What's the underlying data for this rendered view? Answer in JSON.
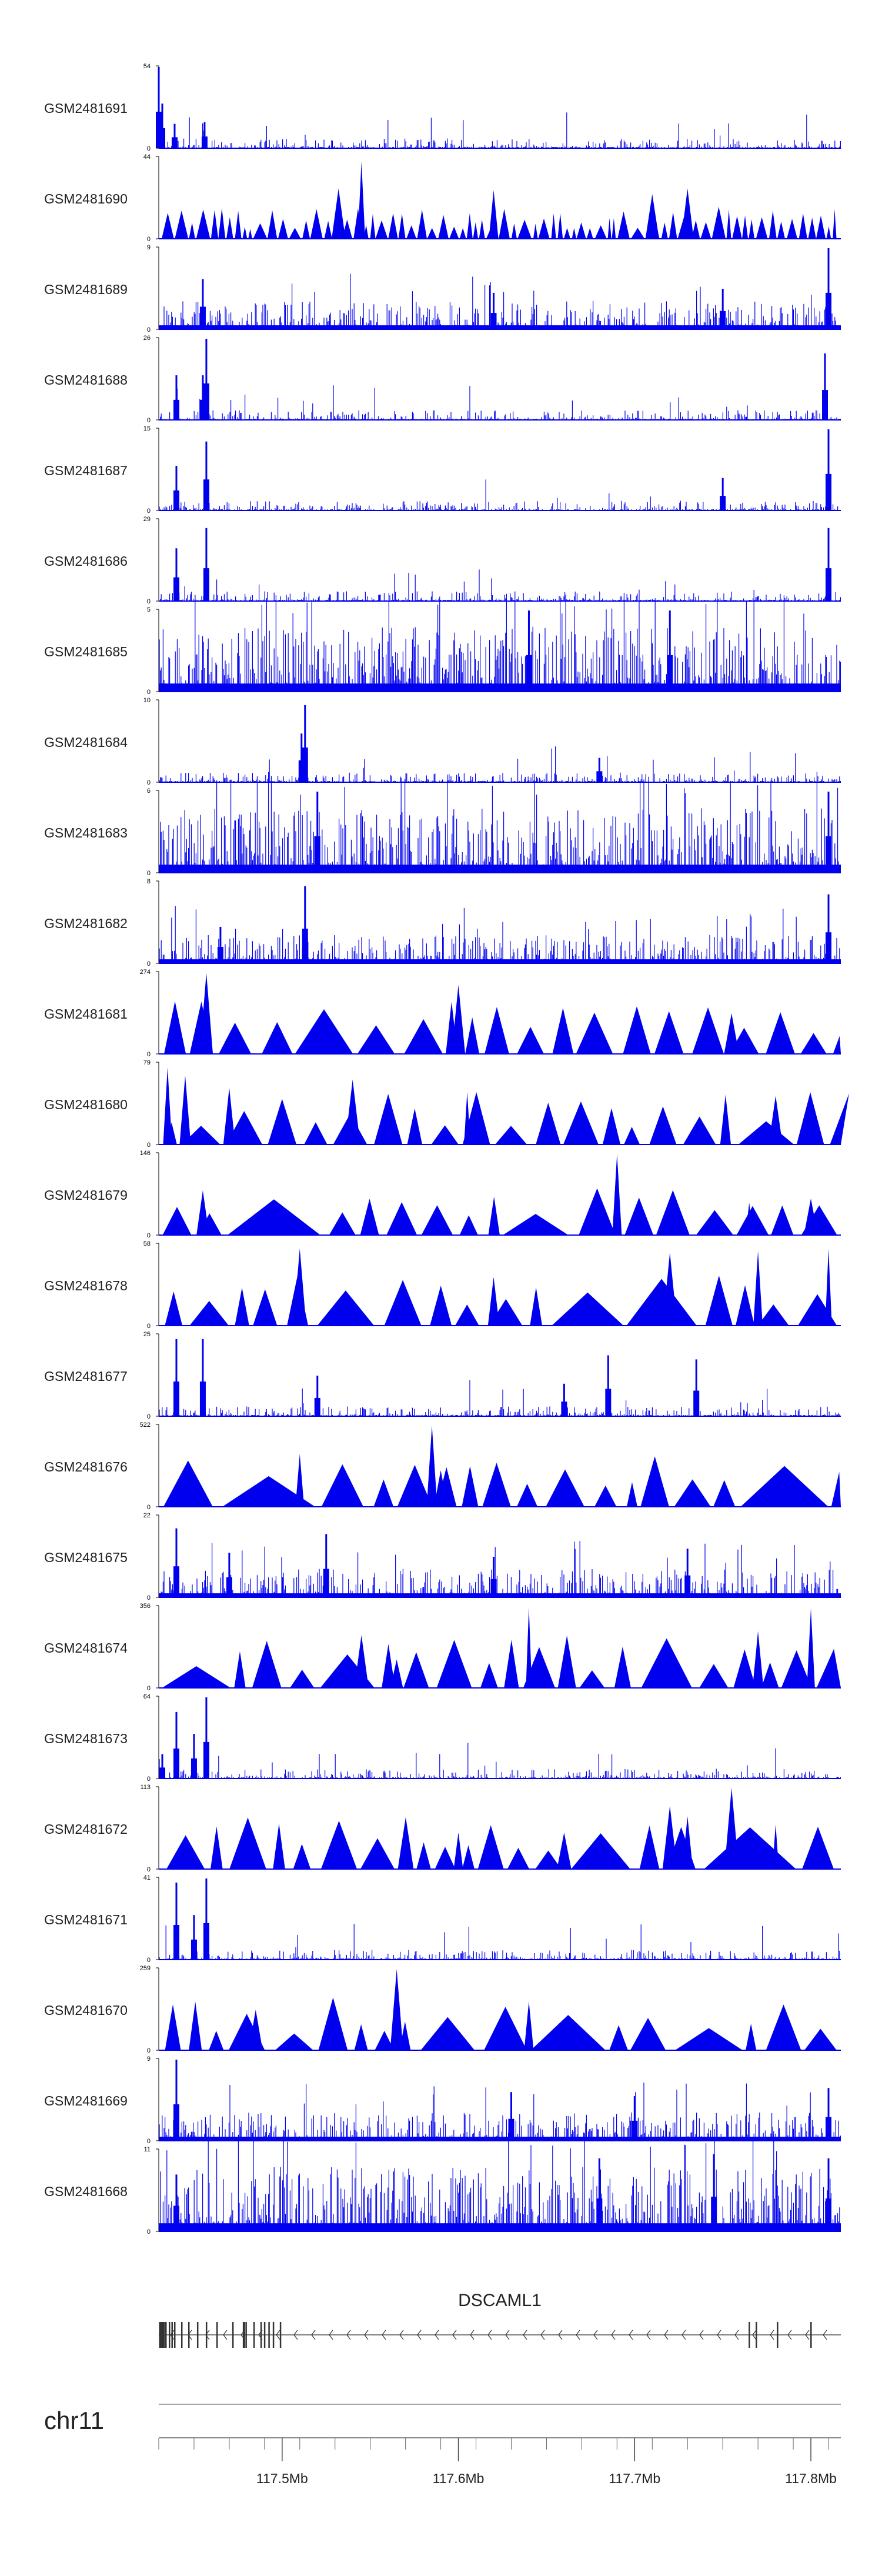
{
  "chart_data": {
    "type": "genome-browser-coverage-tracks",
    "colors": {
      "track": "#0000EE",
      "axis": "#000000",
      "gene": "#333333",
      "label": "#222222"
    },
    "tracks": [
      {
        "name": "GSM2481691",
        "ymin": "0",
        "ymax": "54",
        "style": "sparse-peaks",
        "peaks": [
          [
            117.43,
            1.0
          ],
          [
            117.432,
            0.55
          ],
          [
            117.439,
            0.3
          ],
          [
            117.456,
            0.32
          ]
        ]
      },
      {
        "name": "GSM2481690",
        "ymin": "0",
        "ymax": "44",
        "style": "dense-triangles",
        "peaks": [
          [
            117.545,
            0.95
          ],
          [
            117.532,
            0.62
          ],
          [
            117.62,
            0.6
          ],
          [
            117.71,
            0.55
          ],
          [
            117.73,
            0.62
          ]
        ]
      },
      {
        "name": "GSM2481689",
        "ymin": "0",
        "ymax": "9",
        "style": "dense",
        "peaks": [
          [
            117.455,
            0.62
          ],
          [
            117.81,
            1.0
          ],
          [
            117.75,
            0.5
          ],
          [
            117.62,
            0.45
          ]
        ]
      },
      {
        "name": "GSM2481688",
        "ymin": "0",
        "ymax": "26",
        "style": "sparse-peaks",
        "peaks": [
          [
            117.44,
            0.55
          ],
          [
            117.457,
            1.0
          ],
          [
            117.455,
            0.55
          ],
          [
            117.808,
            0.82
          ]
        ]
      },
      {
        "name": "GSM2481687",
        "ymin": "0",
        "ymax": "15",
        "style": "sparse-peaks",
        "peaks": [
          [
            117.44,
            0.55
          ],
          [
            117.457,
            0.85
          ],
          [
            117.81,
            1.0
          ],
          [
            117.75,
            0.4
          ]
        ]
      },
      {
        "name": "GSM2481686",
        "ymin": "0",
        "ymax": "29",
        "style": "sparse-peaks",
        "peaks": [
          [
            117.44,
            0.65
          ],
          [
            117.457,
            0.9
          ],
          [
            117.81,
            0.9
          ]
        ]
      },
      {
        "name": "GSM2481685",
        "ymin": "0",
        "ymax": "5",
        "style": "dense-bars",
        "peaks": [
          [
            117.64,
            1.0
          ],
          [
            117.72,
            1.0
          ]
        ]
      },
      {
        "name": "GSM2481684",
        "ymin": "0",
        "ymax": "10",
        "style": "sparse-peaks",
        "peaks": [
          [
            117.513,
            0.95
          ],
          [
            117.511,
            0.6
          ],
          [
            117.68,
            0.3
          ]
        ]
      },
      {
        "name": "GSM2481683",
        "ymin": "0",
        "ymax": "6",
        "style": "dense-bars",
        "peaks": [
          [
            117.52,
            1.0
          ],
          [
            117.81,
            1.0
          ]
        ]
      },
      {
        "name": "GSM2481682",
        "ymin": "0",
        "ymax": "8",
        "style": "dense",
        "peaks": [
          [
            117.513,
            0.95
          ],
          [
            117.81,
            0.85
          ],
          [
            117.465,
            0.45
          ]
        ]
      },
      {
        "name": "GSM2481681",
        "ymin": "0",
        "ymax": "274",
        "style": "triangles",
        "peaks": [
          [
            117.457,
            1.0
          ],
          [
            117.6,
            0.85
          ],
          [
            117.52,
            0.25
          ],
          [
            117.755,
            0.5
          ],
          [
            117.475,
            0.2
          ]
        ]
      },
      {
        "name": "GSM2481680",
        "ymin": "0",
        "ymax": "79",
        "style": "triangles",
        "peaks": [
          [
            117.435,
            0.95
          ],
          [
            117.445,
            0.85
          ],
          [
            117.47,
            0.7
          ],
          [
            117.54,
            0.8
          ],
          [
            117.605,
            0.65
          ],
          [
            117.78,
            0.6
          ],
          [
            117.56,
            0.45
          ]
        ]
      },
      {
        "name": "GSM2481679",
        "ymin": "0",
        "ymax": "146",
        "style": "triangles",
        "peaks": [
          [
            117.69,
            1.0
          ],
          [
            117.455,
            0.55
          ],
          [
            117.765,
            0.4
          ],
          [
            117.8,
            0.45
          ]
        ]
      },
      {
        "name": "GSM2481678",
        "ymin": "0",
        "ymax": "58",
        "style": "triangles",
        "peaks": [
          [
            117.51,
            0.95
          ],
          [
            117.72,
            0.9
          ],
          [
            117.77,
            0.92
          ],
          [
            117.81,
            0.95
          ],
          [
            117.62,
            0.6
          ]
        ]
      },
      {
        "name": "GSM2481677",
        "ymin": "0",
        "ymax": "25",
        "style": "sparse-peaks",
        "peaks": [
          [
            117.44,
            0.95
          ],
          [
            117.455,
            0.95
          ],
          [
            117.52,
            0.5
          ],
          [
            117.685,
            0.75
          ],
          [
            117.735,
            0.7
          ],
          [
            117.66,
            0.4
          ]
        ]
      },
      {
        "name": "GSM2481676",
        "ymin": "0",
        "ymax": "522",
        "style": "triangles",
        "peaks": [
          [
            117.585,
            1.0
          ],
          [
            117.51,
            0.65
          ],
          [
            117.59,
            0.45
          ]
        ]
      },
      {
        "name": "GSM2481675",
        "ymin": "0",
        "ymax": "22",
        "style": "dense",
        "peaks": [
          [
            117.44,
            0.85
          ],
          [
            117.525,
            0.78
          ],
          [
            117.73,
            0.6
          ],
          [
            117.47,
            0.55
          ],
          [
            117.62,
            0.5
          ]
        ]
      },
      {
        "name": "GSM2481674",
        "ymin": "0",
        "ymax": "356",
        "style": "triangles",
        "peaks": [
          [
            117.64,
            1.0
          ],
          [
            117.8,
            0.98
          ],
          [
            117.545,
            0.65
          ],
          [
            117.77,
            0.7
          ],
          [
            117.565,
            0.35
          ]
        ]
      },
      {
        "name": "GSM2481673",
        "ymin": "0",
        "ymax": "64",
        "style": "sparse-peaks",
        "peaks": [
          [
            117.44,
            0.82
          ],
          [
            117.457,
            1.0
          ],
          [
            117.45,
            0.55
          ],
          [
            117.432,
            0.3
          ]
        ]
      },
      {
        "name": "GSM2481672",
        "ymin": "0",
        "ymax": "113",
        "style": "triangles",
        "peaks": [
          [
            117.755,
            1.0
          ],
          [
            117.72,
            0.78
          ],
          [
            117.73,
            0.65
          ],
          [
            117.66,
            0.45
          ],
          [
            117.6,
            0.45
          ],
          [
            117.78,
            0.55
          ]
        ]
      },
      {
        "name": "GSM2481671",
        "ymin": "0",
        "ymax": "41",
        "style": "sparse-peaks",
        "peaks": [
          [
            117.44,
            0.95
          ],
          [
            117.457,
            1.0
          ],
          [
            117.45,
            0.55
          ]
        ]
      },
      {
        "name": "GSM2481670",
        "ymin": "0",
        "ymax": "259",
        "style": "triangles",
        "peaks": [
          [
            117.565,
            1.0
          ],
          [
            117.64,
            0.6
          ],
          [
            117.485,
            0.5
          ]
        ]
      },
      {
        "name": "GSM2481669",
        "ymin": "0",
        "ymax": "9",
        "style": "dense",
        "peaks": [
          [
            117.44,
            1.0
          ],
          [
            117.81,
            0.65
          ],
          [
            117.63,
            0.6
          ],
          [
            117.7,
            0.55
          ]
        ]
      },
      {
        "name": "GSM2481668",
        "ymin": "0",
        "ymax": "11",
        "style": "dense-bars",
        "peaks": [
          [
            117.44,
            0.7
          ],
          [
            117.68,
            0.9
          ],
          [
            117.745,
            0.95
          ],
          [
            117.81,
            0.9
          ]
        ]
      }
    ],
    "gene": {
      "name": "DSCAML1",
      "strand": "-",
      "start_mb": 117.43,
      "end_mb": 117.817,
      "exons_mb": [
        117.4305,
        117.4315,
        117.4325,
        117.434,
        117.436,
        117.4375,
        117.439,
        117.443,
        117.447,
        117.452,
        117.457,
        117.463,
        117.472,
        117.478,
        117.4785,
        117.4795,
        117.484,
        117.488,
        117.49,
        117.4925,
        117.495,
        117.499,
        117.765,
        117.769,
        117.781,
        117.8
      ]
    },
    "chromosome": "chr11",
    "axis": {
      "xlim_mb": [
        117.43,
        117.817
      ],
      "major_ticks_mb": [
        117.5,
        117.6,
        117.7,
        117.8
      ],
      "tick_labels": [
        "117.5Mb",
        "117.6Mb",
        "117.7Mb",
        "117.8Mb"
      ],
      "minor_step_mb": 0.02
    }
  }
}
